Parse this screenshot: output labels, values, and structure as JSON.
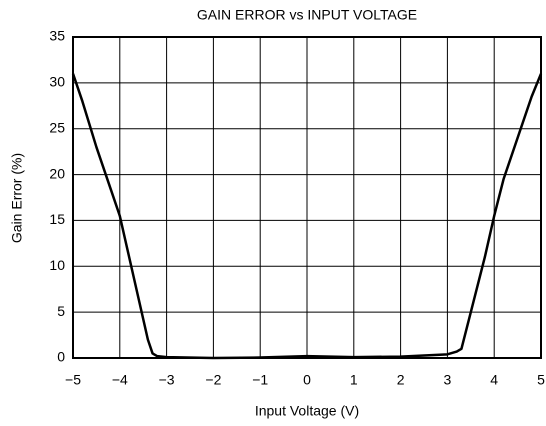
{
  "chart_data": {
    "type": "line",
    "title": "GAIN ERROR vs INPUT VOLTAGE",
    "xlabel": "Input Voltage (V)",
    "ylabel": "Gain Error (%)",
    "x": [
      -5,
      -4.8,
      -4.5,
      -4.2,
      -4,
      -3.8,
      -3.6,
      -3.4,
      -3.3,
      -3.2,
      -3,
      -2,
      -1,
      0,
      1,
      2,
      3,
      3.2,
      3.3,
      3.5,
      3.8,
      4,
      4.2,
      4.5,
      4.8,
      5
    ],
    "series": [
      {
        "name": "Gain Error",
        "color": "#000000",
        "values": [
          31,
          28,
          23,
          18.5,
          15.5,
          11,
          6.5,
          2,
          0.5,
          0.2,
          0.1,
          0,
          0.05,
          0.2,
          0.1,
          0.15,
          0.4,
          0.7,
          1,
          5,
          11,
          15.5,
          19.5,
          24,
          28.5,
          31
        ]
      }
    ],
    "xlim": [
      -5,
      5
    ],
    "xticks": [
      {
        "value": -5,
        "label": "−5"
      },
      {
        "value": -4,
        "label": "−4"
      },
      {
        "value": -3,
        "label": "−3"
      },
      {
        "value": -2,
        "label": "−2"
      },
      {
        "value": -1,
        "label": "−1"
      },
      0,
      1,
      2,
      3,
      4,
      5
    ],
    "ylim": [
      0,
      35
    ],
    "yticks": [
      0,
      5,
      10,
      15,
      20,
      25,
      30,
      35
    ],
    "grid": true
  }
}
